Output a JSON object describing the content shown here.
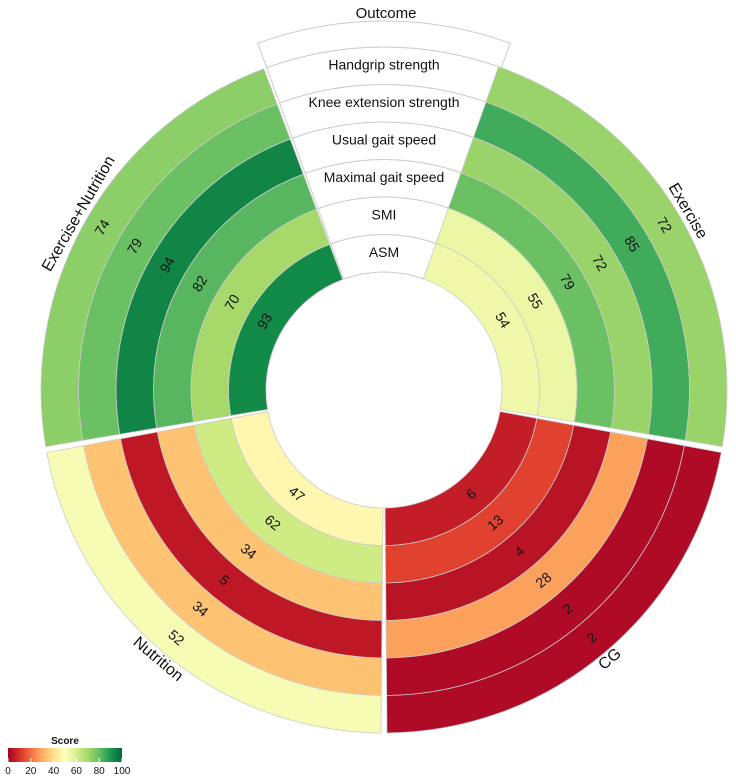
{
  "chart_data": {
    "type": "circular-heatmap",
    "title": "Outcome",
    "outcomes": [
      "ASM",
      "SMI",
      "Maximal gait speed",
      "Usual gait speed",
      "Knee extension strength",
      "Handgrip strength"
    ],
    "groups": [
      {
        "name": "Exercise",
        "values": [
          54,
          55,
          79,
          72,
          85,
          72
        ]
      },
      {
        "name": "CG",
        "values": [
          6,
          13,
          4,
          28,
          2,
          2
        ]
      },
      {
        "name": "Nutrition",
        "values": [
          47,
          62,
          34,
          5,
          34,
          52
        ]
      },
      {
        "name": "Exercise+Nutrition",
        "values": [
          93,
          70,
          82,
          94,
          79,
          74
        ]
      }
    ],
    "legend": {
      "title": "Score",
      "ticks": [
        "0",
        "20",
        "40",
        "60",
        "80",
        "100"
      ],
      "range": [
        0,
        100
      ],
      "palette": "RdYlGn"
    }
  },
  "colors": {
    "scale": [
      "#a50026",
      "#d73027",
      "#f46d43",
      "#fdae61",
      "#fee08b",
      "#ffffbf",
      "#d9ef8b",
      "#a6d96a",
      "#66bd63",
      "#1a9850",
      "#006837"
    ],
    "cell_stroke": "#cccccc",
    "outcome_fill": "#ffffff"
  }
}
